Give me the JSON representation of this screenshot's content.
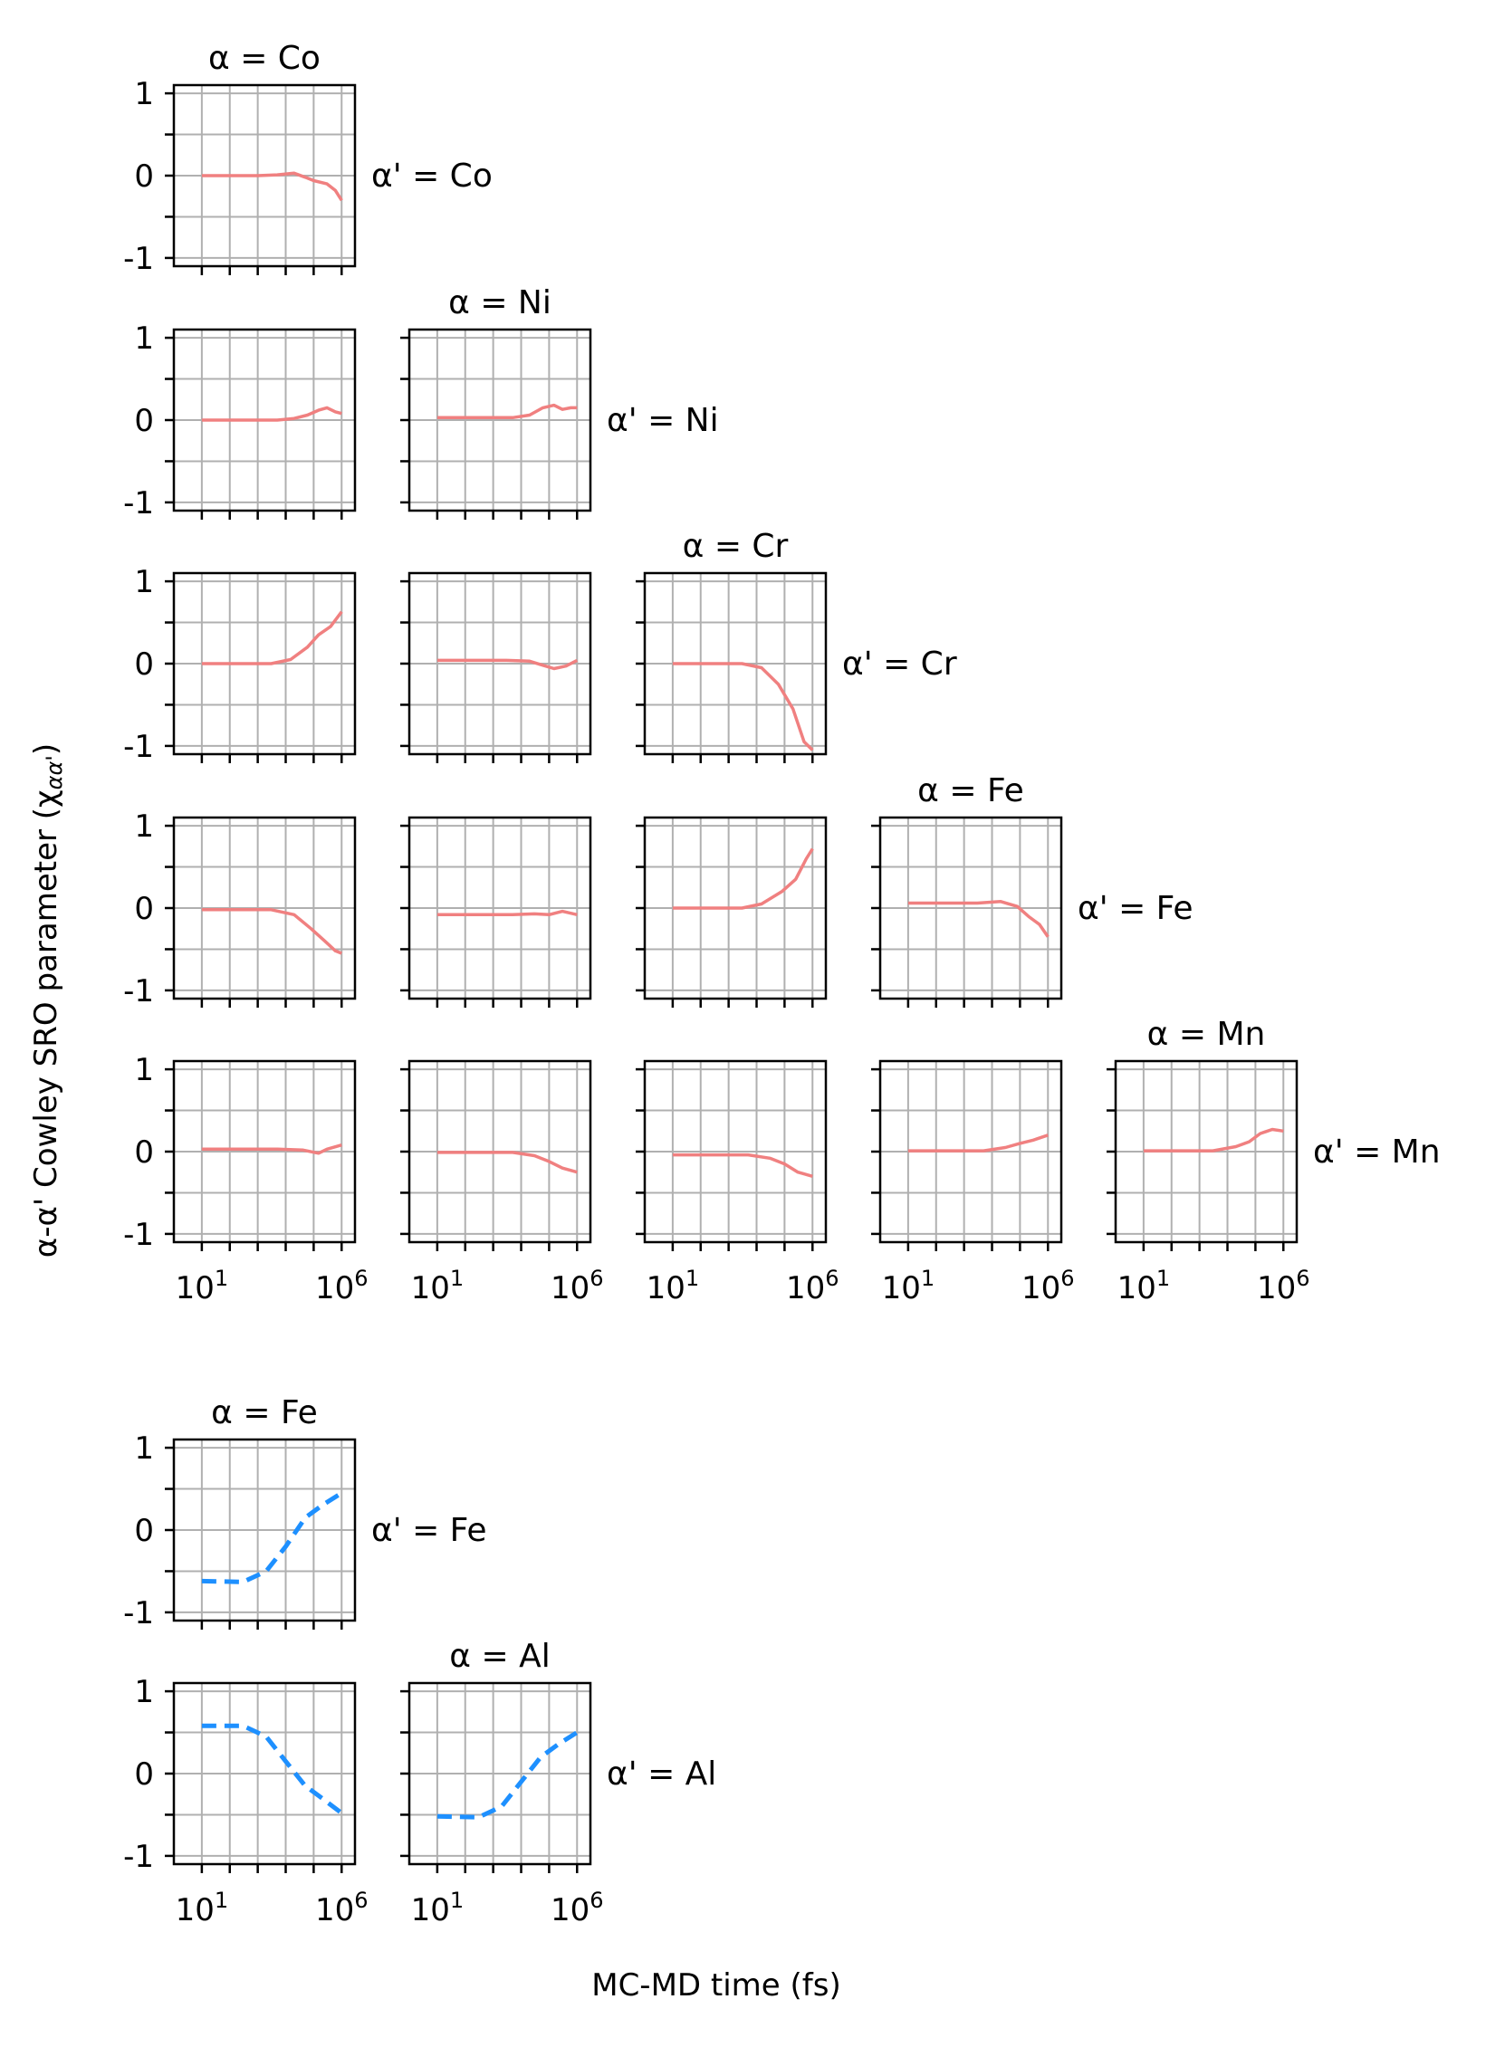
{
  "figure": {
    "ylabel": "α-α' Cowley SRO parameter (χ",
    "ylabel_sub": "αα'",
    "ylabel_close": ")",
    "xlabel": "MC-MD time (fs)",
    "colors": {
      "group1": "#F08080",
      "group2": "#1E90FF",
      "grid": "#b0b0b0"
    }
  },
  "chart_data": [
    {
      "type": "line",
      "group": "top",
      "line_style": "solid",
      "x_scale": "log",
      "xlim": [
        1,
        3000000
      ],
      "ylim": [
        -1.1,
        1.1
      ],
      "yticks": [
        -1,
        0,
        1
      ],
      "ytick_labels": [
        "-1",
        "0",
        "1"
      ],
      "xtick_labels": [
        "10",
        "1",
        "10",
        "6"
      ],
      "grid": true,
      "col_titles": [
        "α = Co",
        "α = Ni",
        "α = Cr",
        "α = Fe",
        "α = Mn"
      ],
      "row_labels": [
        "α' = Co",
        "α' = Ni",
        "α' = Cr",
        "α' = Fe",
        "α' = Mn"
      ],
      "panels": [
        {
          "row": 0,
          "col": 0,
          "series": [
            [
              10,
              0
            ],
            [
              1000,
              0
            ],
            [
              5000,
              0.01
            ],
            [
              20000,
              0.03
            ],
            [
              50000,
              -0.02
            ],
            [
              100000,
              -0.06
            ],
            [
              300000,
              -0.1
            ],
            [
              600000,
              -0.18
            ],
            [
              1000000,
              -0.3
            ]
          ]
        },
        {
          "row": 1,
          "col": 0,
          "series": [
            [
              10,
              0
            ],
            [
              5000,
              0
            ],
            [
              20000,
              0.02
            ],
            [
              60000,
              0.06
            ],
            [
              150000,
              0.12
            ],
            [
              300000,
              0.15
            ],
            [
              600000,
              0.1
            ],
            [
              1000000,
              0.08
            ]
          ]
        },
        {
          "row": 1,
          "col": 1,
          "series": [
            [
              10,
              0.03
            ],
            [
              5000,
              0.03
            ],
            [
              20000,
              0.06
            ],
            [
              60000,
              0.15
            ],
            [
              150000,
              0.18
            ],
            [
              300000,
              0.13
            ],
            [
              600000,
              0.15
            ],
            [
              1000000,
              0.15
            ]
          ]
        },
        {
          "row": 2,
          "col": 0,
          "series": [
            [
              10,
              0
            ],
            [
              3000,
              0
            ],
            [
              15000,
              0.05
            ],
            [
              60000,
              0.2
            ],
            [
              150000,
              0.35
            ],
            [
              400000,
              0.45
            ],
            [
              1000000,
              0.63
            ]
          ]
        },
        {
          "row": 2,
          "col": 1,
          "series": [
            [
              10,
              0.04
            ],
            [
              3000,
              0.04
            ],
            [
              20000,
              0.03
            ],
            [
              60000,
              -0.02
            ],
            [
              150000,
              -0.06
            ],
            [
              400000,
              -0.03
            ],
            [
              1000000,
              0.04
            ]
          ]
        },
        {
          "row": 2,
          "col": 2,
          "series": [
            [
              10,
              0
            ],
            [
              3000,
              0
            ],
            [
              15000,
              -0.05
            ],
            [
              60000,
              -0.25
            ],
            [
              200000,
              -0.55
            ],
            [
              500000,
              -0.95
            ],
            [
              1000000,
              -1.05
            ]
          ]
        },
        {
          "row": 3,
          "col": 0,
          "series": [
            [
              10,
              -0.02
            ],
            [
              3000,
              -0.02
            ],
            [
              20000,
              -0.08
            ],
            [
              80000,
              -0.25
            ],
            [
              250000,
              -0.4
            ],
            [
              600000,
              -0.52
            ],
            [
              1000000,
              -0.55
            ]
          ]
        },
        {
          "row": 3,
          "col": 1,
          "series": [
            [
              10,
              -0.08
            ],
            [
              5000,
              -0.08
            ],
            [
              30000,
              -0.07
            ],
            [
              100000,
              -0.08
            ],
            [
              300000,
              -0.04
            ],
            [
              1000000,
              -0.08
            ]
          ]
        },
        {
          "row": 3,
          "col": 2,
          "series": [
            [
              10,
              0
            ],
            [
              3000,
              0
            ],
            [
              15000,
              0.05
            ],
            [
              80000,
              0.2
            ],
            [
              250000,
              0.35
            ],
            [
              600000,
              0.6
            ],
            [
              1000000,
              0.72
            ]
          ]
        },
        {
          "row": 3,
          "col": 3,
          "series": [
            [
              10,
              0.06
            ],
            [
              3000,
              0.06
            ],
            [
              20000,
              0.08
            ],
            [
              80000,
              0.02
            ],
            [
              200000,
              -0.1
            ],
            [
              500000,
              -0.2
            ],
            [
              1000000,
              -0.35
            ]
          ]
        },
        {
          "row": 4,
          "col": 0,
          "series": [
            [
              10,
              0.03
            ],
            [
              5000,
              0.03
            ],
            [
              40000,
              0.02
            ],
            [
              150000,
              -0.02
            ],
            [
              300000,
              0.03
            ],
            [
              1000000,
              0.08
            ]
          ]
        },
        {
          "row": 4,
          "col": 1,
          "series": [
            [
              10,
              -0.01
            ],
            [
              5000,
              -0.01
            ],
            [
              30000,
              -0.05
            ],
            [
              100000,
              -0.12
            ],
            [
              300000,
              -0.2
            ],
            [
              1000000,
              -0.25
            ]
          ]
        },
        {
          "row": 4,
          "col": 2,
          "series": [
            [
              10,
              -0.04
            ],
            [
              5000,
              -0.04
            ],
            [
              30000,
              -0.08
            ],
            [
              100000,
              -0.15
            ],
            [
              300000,
              -0.25
            ],
            [
              1000000,
              -0.3
            ]
          ]
        },
        {
          "row": 4,
          "col": 3,
          "series": [
            [
              10,
              0.01
            ],
            [
              5000,
              0.01
            ],
            [
              30000,
              0.05
            ],
            [
              100000,
              0.1
            ],
            [
              300000,
              0.14
            ],
            [
              1000000,
              0.2
            ]
          ]
        },
        {
          "row": 4,
          "col": 4,
          "series": [
            [
              10,
              0.01
            ],
            [
              3000,
              0.01
            ],
            [
              20000,
              0.06
            ],
            [
              60000,
              0.12
            ],
            [
              150000,
              0.22
            ],
            [
              400000,
              0.27
            ],
            [
              1000000,
              0.25
            ]
          ]
        }
      ]
    },
    {
      "type": "line",
      "group": "bottom",
      "line_style": "dashed",
      "x_scale": "log",
      "xlim": [
        1,
        3000000
      ],
      "ylim": [
        -1.1,
        1.1
      ],
      "yticks": [
        -1,
        0,
        1
      ],
      "ytick_labels": [
        "-1",
        "0",
        "1"
      ],
      "xtick_labels": [
        "10",
        "1",
        "10",
        "6"
      ],
      "grid": true,
      "col_titles": [
        "α = Fe",
        "α = Al"
      ],
      "row_labels": [
        "α' = Fe",
        "α' = Al"
      ],
      "panels": [
        {
          "row": 0,
          "col": 0,
          "series": [
            [
              10,
              -0.62
            ],
            [
              300,
              -0.63
            ],
            [
              2000,
              -0.5
            ],
            [
              10000,
              -0.2
            ],
            [
              50000,
              0.15
            ],
            [
              200000,
              0.3
            ],
            [
              1000000,
              0.45
            ]
          ]
        },
        {
          "row": 1,
          "col": 0,
          "series": [
            [
              10,
              0.58
            ],
            [
              300,
              0.58
            ],
            [
              2000,
              0.45
            ],
            [
              10000,
              0.15
            ],
            [
              50000,
              -0.15
            ],
            [
              200000,
              -0.3
            ],
            [
              1000000,
              -0.48
            ]
          ]
        },
        {
          "row": 1,
          "col": 1,
          "series": [
            [
              10,
              -0.52
            ],
            [
              300,
              -0.53
            ],
            [
              2000,
              -0.4
            ],
            [
              10000,
              -0.1
            ],
            [
              50000,
              0.2
            ],
            [
              200000,
              0.35
            ],
            [
              1000000,
              0.5
            ]
          ]
        }
      ]
    }
  ]
}
